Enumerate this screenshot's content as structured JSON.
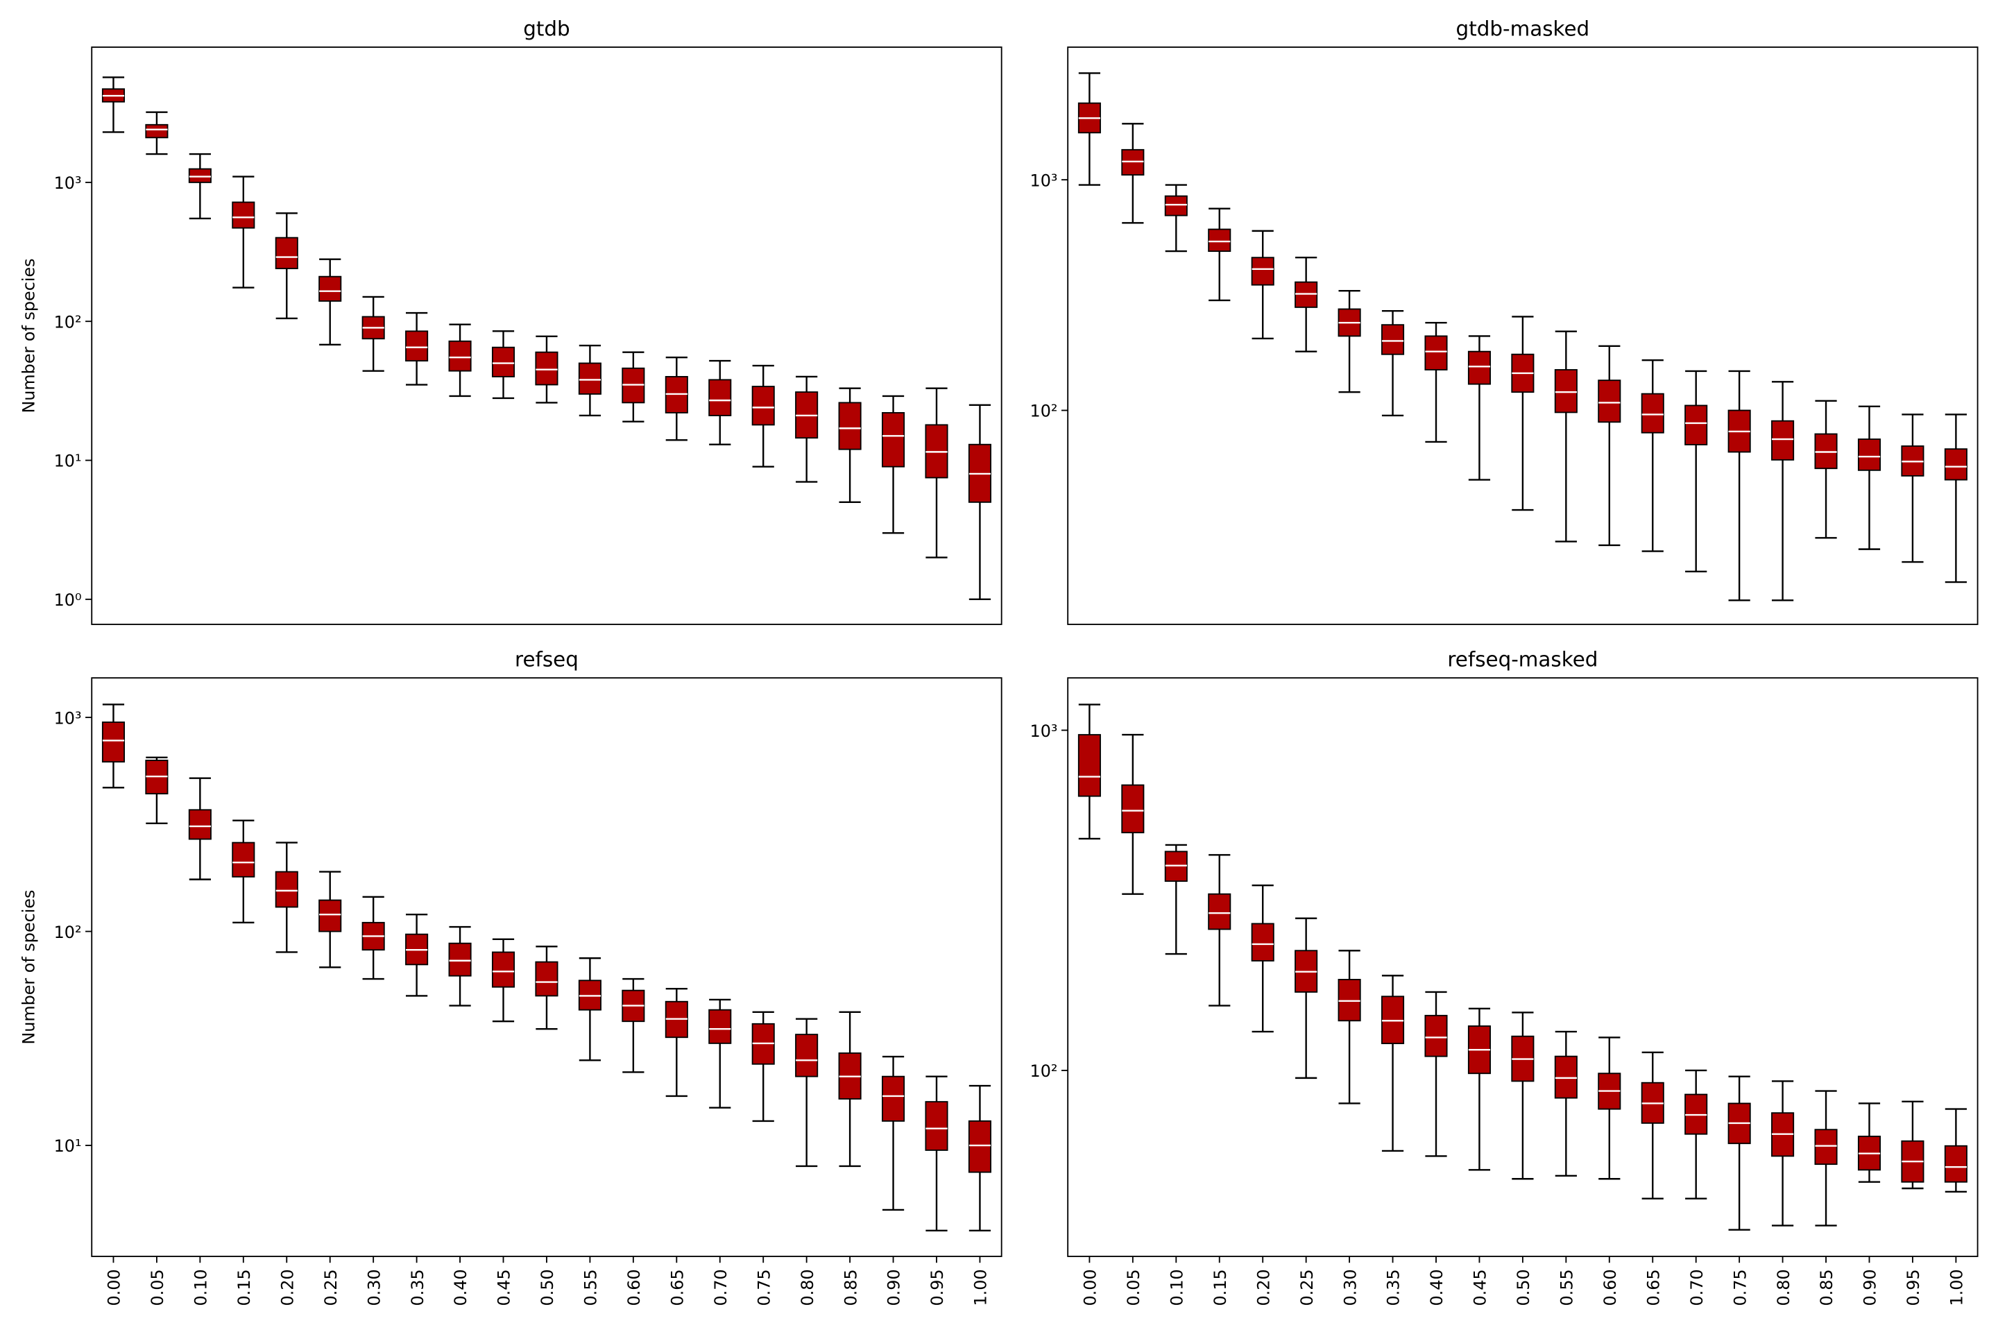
{
  "chart_data": [
    {
      "type": "box",
      "title": "gtdb",
      "ylabel": "Number of species",
      "yscale": "log",
      "color": "#b00000",
      "median_color": "#ffffff",
      "ylim": [
        0.66,
        9400
      ],
      "yticks": [
        {
          "value": 1,
          "label": "10⁰"
        },
        {
          "value": 10,
          "label": "10¹"
        },
        {
          "value": 100,
          "label": "10²"
        },
        {
          "value": 1000,
          "label": "10³"
        }
      ],
      "boxes": [
        [
          2300,
          3800,
          4200,
          4700,
          5700
        ],
        [
          1600,
          2100,
          2400,
          2600,
          3200
        ],
        [
          550,
          1000,
          1100,
          1250,
          1600
        ],
        [
          175,
          470,
          560,
          720,
          1100
        ],
        [
          105,
          240,
          290,
          400,
          600
        ],
        [
          68,
          140,
          165,
          210,
          280
        ],
        [
          44,
          75,
          90,
          108,
          150
        ],
        [
          35,
          52,
          65,
          85,
          115
        ],
        [
          29,
          44,
          55,
          72,
          95
        ],
        [
          28,
          40,
          50,
          65,
          85
        ],
        [
          26,
          35,
          45,
          60,
          78
        ],
        [
          21,
          30,
          38,
          50,
          67
        ],
        [
          19,
          26,
          35,
          46,
          60
        ],
        [
          14,
          22,
          30,
          40,
          55
        ],
        [
          13,
          21,
          27,
          38,
          52
        ],
        [
          9,
          18,
          24,
          34,
          48
        ],
        [
          7,
          14.5,
          21,
          31,
          40
        ],
        [
          5,
          12,
          17,
          26,
          33
        ],
        [
          3,
          9,
          15,
          22,
          29
        ],
        [
          2,
          7.5,
          11.5,
          18,
          33
        ],
        [
          1,
          5,
          8,
          13,
          25
        ]
      ]
    },
    {
      "type": "box",
      "title": "gtdb-masked",
      "yscale": "log",
      "color": "#b00000",
      "median_color": "#ffffff",
      "ylim": [
        11.8,
        3760
      ],
      "yticks": [
        {
          "value": 100,
          "label": "10²"
        },
        {
          "value": 1000,
          "label": "10³"
        }
      ],
      "boxes": [
        [
          950,
          1600,
          1850,
          2150,
          2900
        ],
        [
          650,
          1050,
          1200,
          1350,
          1750
        ],
        [
          490,
          700,
          780,
          850,
          950
        ],
        [
          300,
          490,
          540,
          610,
          750
        ],
        [
          205,
          350,
          410,
          460,
          600
        ],
        [
          180,
          280,
          320,
          360,
          460
        ],
        [
          120,
          210,
          240,
          275,
          330
        ],
        [
          95,
          175,
          200,
          235,
          270
        ],
        [
          73,
          150,
          180,
          210,
          240
        ],
        [
          50,
          130,
          155,
          180,
          210
        ],
        [
          37,
          120,
          145,
          175,
          255
        ],
        [
          27,
          98,
          120,
          150,
          220
        ],
        [
          26,
          89,
          108,
          135,
          190
        ],
        [
          24.5,
          80,
          96,
          118,
          165
        ],
        [
          20,
          71,
          88,
          105,
          148
        ],
        [
          15,
          66,
          81,
          100,
          148
        ],
        [
          15,
          61,
          75,
          90,
          133
        ],
        [
          28,
          56,
          66,
          79,
          110
        ],
        [
          25,
          55,
          63,
          75,
          104
        ],
        [
          22,
          52,
          60,
          70,
          96
        ],
        [
          18,
          50,
          57,
          68,
          96
        ]
      ]
    },
    {
      "type": "box",
      "title": "refseq",
      "ylabel": "Number of species",
      "yscale": "log",
      "color": "#b00000",
      "median_color": "#ffffff",
      "ylim": [
        3.03,
        1530
      ],
      "yticks": [
        {
          "value": 10,
          "label": "10¹"
        },
        {
          "value": 100,
          "label": "10²"
        },
        {
          "value": 1000,
          "label": "10³"
        }
      ],
      "categories": [
        "0.00",
        "0.05",
        "0.10",
        "0.15",
        "0.20",
        "0.25",
        "0.30",
        "0.35",
        "0.40",
        "0.45",
        "0.50",
        "0.55",
        "0.60",
        "0.65",
        "0.70",
        "0.75",
        "0.80",
        "0.85",
        "0.90",
        "0.95",
        "1.00"
      ],
      "boxes": [
        [
          470,
          620,
          780,
          950,
          1150
        ],
        [
          320,
          440,
          530,
          630,
          650
        ],
        [
          175,
          270,
          310,
          370,
          520
        ],
        [
          110,
          180,
          210,
          260,
          330
        ],
        [
          80,
          130,
          155,
          190,
          260
        ],
        [
          68,
          100,
          120,
          140,
          190
        ],
        [
          60,
          82,
          95,
          110,
          145
        ],
        [
          50,
          70,
          82,
          97,
          120
        ],
        [
          45,
          62,
          73,
          88,
          105
        ],
        [
          38,
          55,
          65,
          80,
          92
        ],
        [
          35,
          50,
          58,
          72,
          85
        ],
        [
          25,
          43,
          50,
          59,
          75
        ],
        [
          22,
          38,
          45,
          53,
          60
        ],
        [
          17,
          32,
          39,
          47,
          54
        ],
        [
          15,
          30,
          35,
          43,
          48
        ],
        [
          13,
          24,
          30,
          37,
          42
        ],
        [
          8,
          21,
          25,
          33,
          39
        ],
        [
          8,
          16.5,
          21,
          27,
          42
        ],
        [
          5,
          13,
          17,
          21,
          26
        ],
        [
          4,
          9.5,
          12,
          16,
          21
        ],
        [
          4,
          7.5,
          10,
          13,
          19
        ]
      ]
    },
    {
      "type": "box",
      "title": "refseq-masked",
      "yscale": "log",
      "color": "#b00000",
      "median_color": "#ffffff",
      "ylim": [
        28.4,
        1425
      ],
      "yticks": [
        {
          "value": 100,
          "label": "10²"
        },
        {
          "value": 1000,
          "label": "10³"
        }
      ],
      "categories": [
        "0.00",
        "0.05",
        "0.10",
        "0.15",
        "0.20",
        "0.25",
        "0.30",
        "0.35",
        "0.40",
        "0.45",
        "0.50",
        "0.55",
        "0.60",
        "0.65",
        "0.70",
        "0.75",
        "0.80",
        "0.85",
        "0.90",
        "0.95",
        "1.00"
      ],
      "boxes": [
        [
          480,
          640,
          730,
          970,
          1190
        ],
        [
          330,
          500,
          580,
          690,
          970
        ],
        [
          220,
          360,
          400,
          440,
          460
        ],
        [
          155,
          260,
          290,
          330,
          430
        ],
        [
          130,
          210,
          235,
          270,
          350
        ],
        [
          95,
          170,
          195,
          225,
          280
        ],
        [
          80,
          140,
          160,
          185,
          225
        ],
        [
          58,
          120,
          140,
          165,
          190
        ],
        [
          56,
          110,
          125,
          145,
          170
        ],
        [
          51,
          98,
          115,
          135,
          152
        ],
        [
          48,
          93,
          108,
          126,
          148
        ],
        [
          49,
          83,
          95,
          110,
          130
        ],
        [
          48,
          77,
          87,
          98,
          125
        ],
        [
          42,
          70,
          80,
          92,
          113
        ],
        [
          42,
          65,
          74,
          85,
          100
        ],
        [
          34,
          61,
          70,
          80,
          96
        ],
        [
          35,
          56,
          65,
          75,
          93
        ],
        [
          35,
          53,
          60,
          67,
          87
        ],
        [
          47,
          51,
          57,
          64,
          80
        ],
        [
          45,
          47,
          54,
          62,
          81
        ],
        [
          44,
          47,
          52,
          60,
          77
        ]
      ]
    }
  ]
}
